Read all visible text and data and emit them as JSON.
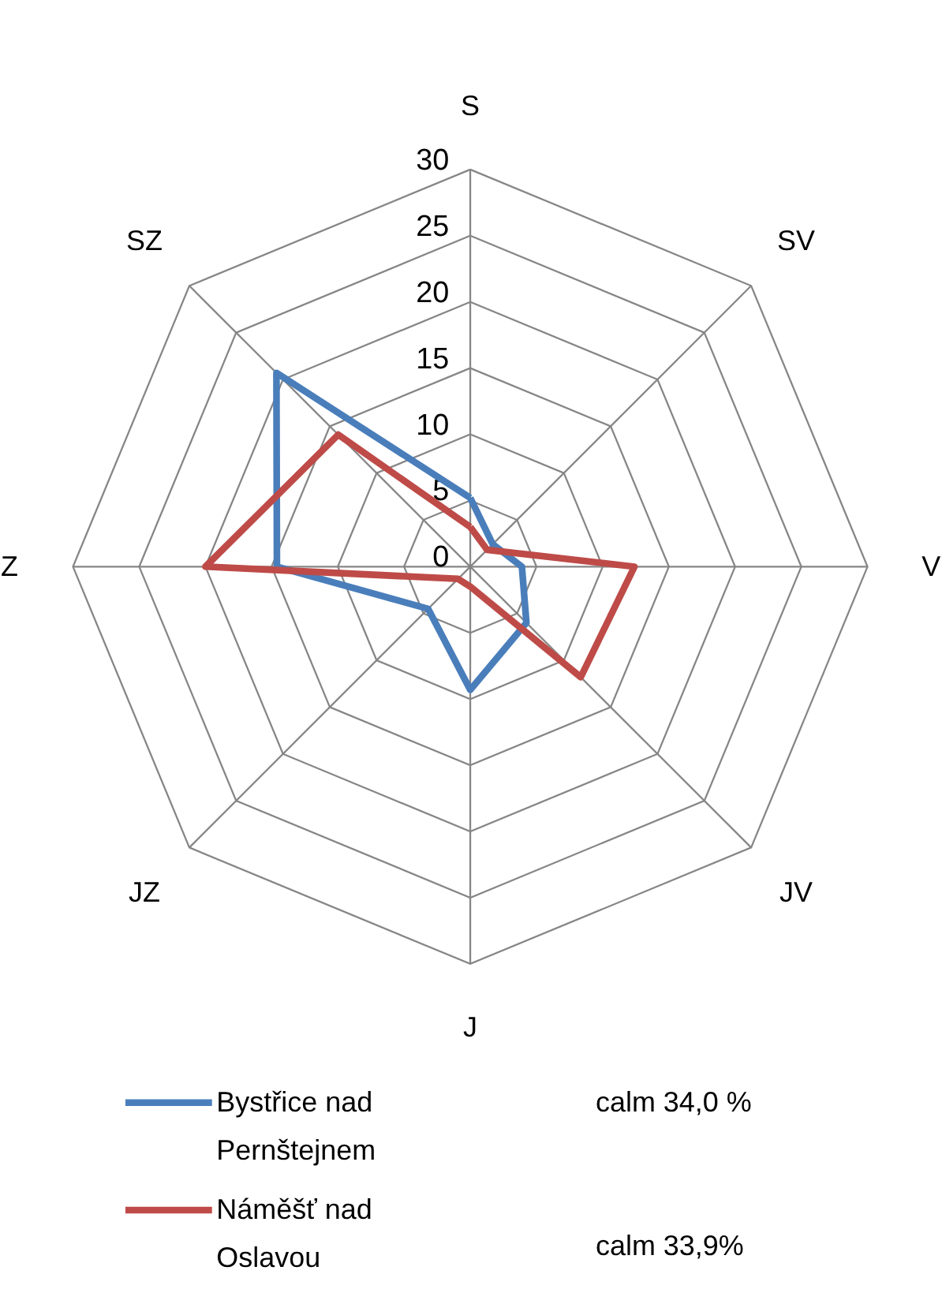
{
  "chart_data": {
    "type": "radar",
    "categories": [
      "S",
      "SV",
      "V",
      "JV",
      "J",
      "JZ",
      "Z",
      "SZ"
    ],
    "series": [
      {
        "name": "Bystřice nad Pernštejnem",
        "color": "#4a7ebb",
        "values": [
          5.2,
          2.4,
          3.9,
          6.0,
          9.3,
          4.5,
          14.6,
          20.7
        ]
      },
      {
        "name": "Náměšť nad Oslavou",
        "color": "#be4b48",
        "values": [
          3.0,
          1.8,
          12.4,
          11.8,
          1.5,
          1.3,
          20.0,
          14.1
        ]
      }
    ],
    "ylim": [
      0,
      30
    ],
    "yticks": [
      0,
      5,
      10,
      15,
      20,
      25,
      30
    ],
    "grid": true,
    "legend": "bottom",
    "annotations": [
      "calm 34,0 %",
      "calm 33,9%"
    ]
  }
}
